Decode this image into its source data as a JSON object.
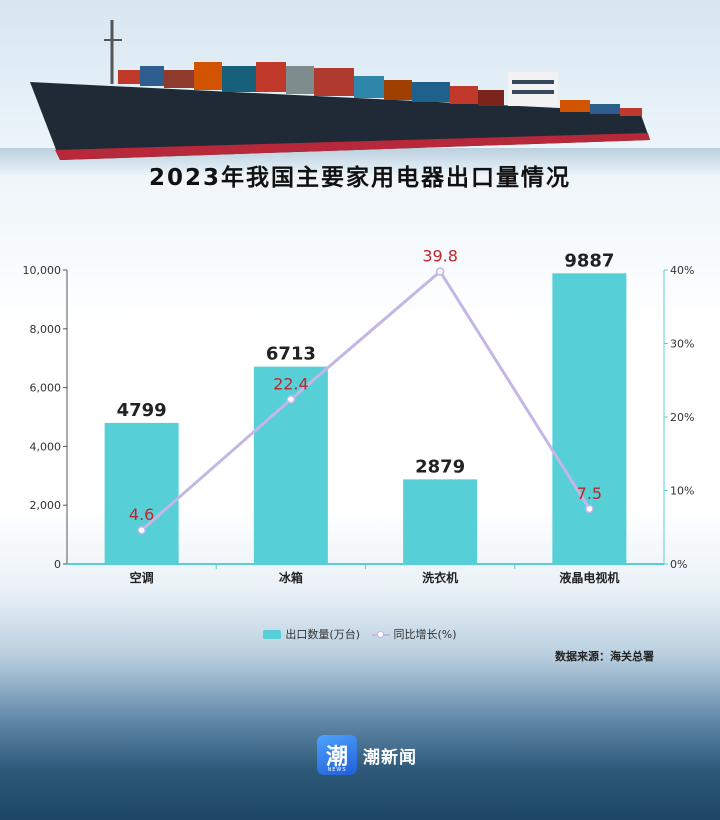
{
  "title": "2023年我国主要家用电器出口量情况",
  "source": "数据来源：海关总署",
  "logo": {
    "glyph": "潮",
    "sub": "NEWS",
    "name": "潮新闻"
  },
  "legend": {
    "bar": "出口数量(万台)",
    "line": "同比增长(%)"
  },
  "chart_data": {
    "type": "bar",
    "categories": [
      "空调",
      "冰箱",
      "洗衣机",
      "液晶电视机"
    ],
    "series": [
      {
        "name": "出口数量(万台)",
        "type": "bar",
        "axis": "left",
        "color": "#56d0d6",
        "values": [
          4799,
          6713,
          2879,
          9887
        ],
        "value_labels": [
          "4799",
          "6713",
          "2879",
          "9887"
        ]
      },
      {
        "name": "同比增长(%)",
        "type": "line",
        "axis": "right",
        "color": "#c4b7e6",
        "values": [
          4.6,
          22.4,
          39.8,
          7.5
        ],
        "value_labels": [
          "4.6",
          "22.4",
          "39.8",
          "7.5"
        ]
      }
    ],
    "y_left": {
      "range": [
        0,
        10000
      ],
      "ticks": [
        0,
        2000,
        4000,
        6000,
        8000,
        10000
      ],
      "tick_labels": [
        "0",
        "2,000",
        "4,000",
        "6,000",
        "8,000",
        "10,000"
      ]
    },
    "y_right": {
      "range": [
        0,
        40
      ],
      "ticks": [
        0,
        10,
        20,
        30,
        40
      ],
      "tick_labels": [
        "0%",
        "10%",
        "20%",
        "30%",
        "40%"
      ]
    },
    "grid": false,
    "legend_position": "bottom",
    "line_label_color": "#c0242c"
  }
}
